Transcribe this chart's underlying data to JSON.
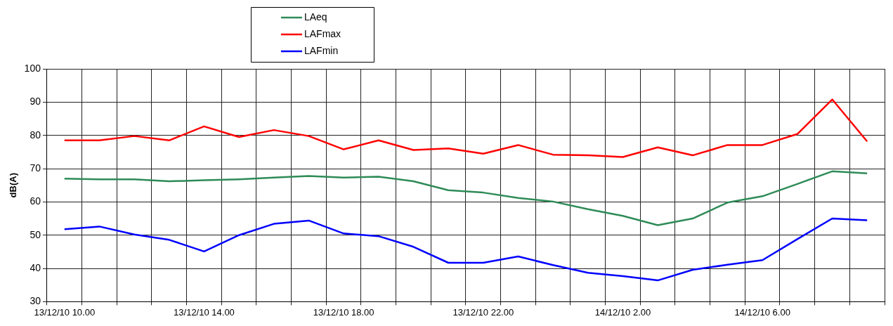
{
  "chart_data": {
    "type": "line",
    "ylabel": "dB(A)",
    "categories": [
      "13/12/10 10.00",
      null,
      null,
      null,
      "13/12/10 14.00",
      null,
      null,
      null,
      "13/12/10 18.00",
      null,
      null,
      null,
      "13/12/10 22.00",
      null,
      null,
      null,
      "14/12/10 2.00",
      null,
      null,
      null,
      "14/12/10 6.00",
      null,
      null,
      null
    ],
    "series": [
      {
        "name": "LAeq",
        "color": "#2e8b57",
        "values": [
          67,
          66.8,
          66.8,
          66.2,
          66.5,
          66.8,
          67.3,
          67.8,
          67.3,
          67.6,
          66.2,
          63.5,
          62.8,
          61.2,
          60.1,
          57.8,
          55.8,
          53,
          55,
          59.8,
          61.7,
          65.4,
          69.2,
          68.6
        ]
      },
      {
        "name": "LAFmax",
        "color": "#ff0000",
        "values": [
          78.5,
          78.5,
          79.8,
          78.5,
          82.7,
          79.5,
          81.6,
          79.8,
          75.8,
          78.5,
          75.6,
          76.1,
          74.5,
          77.1,
          74.2,
          74,
          73.5,
          76.4,
          74,
          77.1,
          77.1,
          80.4,
          90.8,
          78.2
        ]
      },
      {
        "name": "LAFmin",
        "color": "#0000ff",
        "values": [
          51.8,
          52.6,
          50.2,
          48.6,
          45.1,
          50,
          53.4,
          54.4,
          50.5,
          49.7,
          46.5,
          41.7,
          41.7,
          43.6,
          41,
          38.7,
          37.7,
          36.4,
          39.6,
          41.1,
          42.5,
          48.8,
          55,
          54.5
        ]
      }
    ],
    "ylim": [
      30,
      100
    ],
    "yticks": [
      30,
      40,
      50,
      60,
      70,
      80,
      90,
      100
    ],
    "grid": true,
    "legend": "top",
    "marker": "none",
    "line_style": "solid"
  }
}
